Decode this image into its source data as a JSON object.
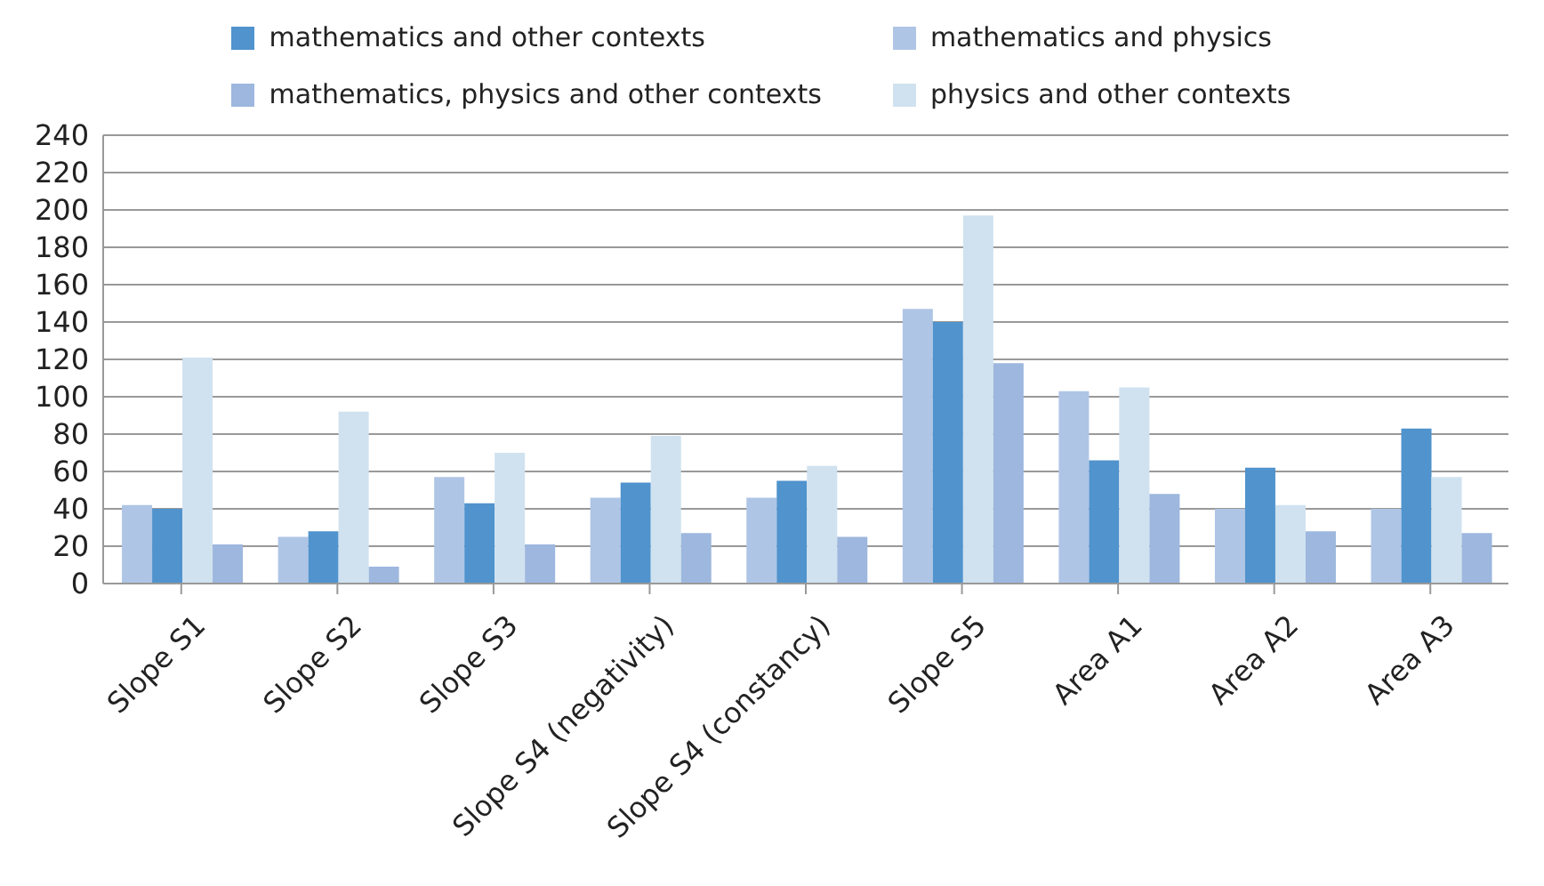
{
  "chart_data": {
    "type": "bar",
    "categories": [
      "Slope S1",
      "Slope S2",
      "Slope S3",
      "Slope S4 (negativity)",
      "Slope S4 (constancy)",
      "Slope S5",
      "Area A1",
      "Area A2",
      "Area A3"
    ],
    "series": [
      {
        "name": "mathematics and physics",
        "color": "#afc5e6",
        "values": [
          42,
          25,
          57,
          46,
          46,
          147,
          103,
          40,
          40
        ]
      },
      {
        "name": "mathematics and other contexts",
        "color": "#5093cd",
        "values": [
          40,
          28,
          43,
          54,
          55,
          140,
          66,
          62,
          83
        ]
      },
      {
        "name": "physics and other contexts",
        "color": "#d0e2ef",
        "values": [
          121,
          92,
          70,
          79,
          63,
          197,
          105,
          42,
          57
        ]
      },
      {
        "name": "mathematics, physics and other contexts",
        "color": "#9db7de",
        "values": [
          21,
          9,
          21,
          27,
          25,
          118,
          48,
          28,
          27
        ]
      }
    ],
    "ylim": [
      0,
      240
    ],
    "yticks": [
      0,
      20,
      40,
      60,
      80,
      100,
      120,
      140,
      160,
      180,
      200,
      220,
      240
    ],
    "grid": "y",
    "legend": "top"
  }
}
